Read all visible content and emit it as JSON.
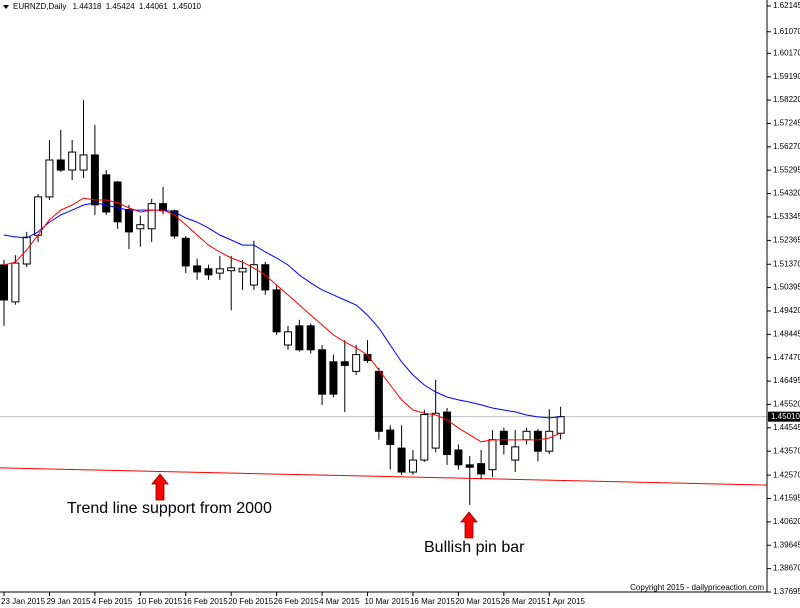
{
  "chart_data": {
    "type": "candlestick",
    "symbol": "EURNZD,Daily",
    "ohlc_label": [
      "1.44318",
      "1.45424",
      "1.44061",
      "1.45010"
    ],
    "categories": [
      "23 Jan 2015",
      null,
      null,
      null,
      "29 Jan 2015",
      null,
      null,
      null,
      "4 Feb 2015",
      null,
      null,
      null,
      "10 Feb 2015",
      null,
      null,
      null,
      "16 Feb 2015",
      null,
      null,
      null,
      "20 Feb 2015",
      null,
      null,
      null,
      "26 Feb 2015",
      null,
      null,
      null,
      "4 Mar 2015",
      null,
      null,
      null,
      "10 Mar 2015",
      null,
      null,
      null,
      "16 Mar 2015",
      null,
      null,
      null,
      "20 Mar 2015",
      null,
      null,
      null,
      "26 Mar 2015",
      null,
      null,
      null,
      "1 Apr 2015",
      null
    ],
    "open": [
      1.5134,
      1.498,
      1.5138,
      1.5258,
      1.5418,
      1.5572,
      1.553,
      1.553,
      1.5593,
      1.551,
      1.548,
      1.5365,
      1.5285,
      1.5285,
      1.539,
      1.536,
      1.5245,
      1.513,
      1.5118,
      1.51,
      1.511,
      1.5105,
      1.505,
      1.5135,
      1.503,
      1.48,
      1.488,
      1.488,
      1.478,
      1.473,
      1.473,
      1.469,
      1.476,
      1.469,
      1.4445,
      1.437,
      1.427,
      1.432,
      1.437,
      1.452,
      1.4362,
      1.43,
      1.4305,
      1.428,
      1.444,
      1.432,
      1.4405,
      1.444,
      1.4357,
      1.44318
    ],
    "high": [
      1.5155,
      1.5175,
      1.5272,
      1.543,
      1.5655,
      1.5697,
      1.5655,
      1.5822,
      1.5718,
      1.553,
      1.5485,
      1.5385,
      1.534,
      1.541,
      1.546,
      1.5365,
      1.5255,
      1.516,
      1.5135,
      1.5172,
      1.5172,
      1.5155,
      1.5235,
      1.5147,
      1.505,
      1.488,
      1.4905,
      1.489,
      1.48,
      1.476,
      1.482,
      1.48,
      1.482,
      1.4705,
      1.4465,
      1.4465,
      1.4362,
      1.453,
      1.4655,
      1.4537,
      1.4385,
      1.4337,
      1.4362,
      1.4445,
      1.4455,
      1.4445,
      1.4455,
      1.445,
      1.4532,
      1.45424
    ],
    "low": [
      1.488,
      1.4968,
      1.5125,
      1.523,
      1.5405,
      1.5522,
      1.5488,
      1.5497,
      1.5343,
      1.5343,
      1.5285,
      1.52,
      1.521,
      1.523,
      1.5345,
      1.5243,
      1.51,
      1.5072,
      1.5072,
      1.5072,
      1.4945,
      1.503,
      1.503,
      1.501,
      1.4842,
      1.478,
      1.4772,
      1.4765,
      1.455,
      1.4582,
      1.452,
      1.4675,
      1.4725,
      1.4405,
      1.428,
      1.4258,
      1.4258,
      1.4312,
      1.4352,
      1.43,
      1.428,
      1.4133,
      1.424,
      1.425,
      1.4343,
      1.427,
      1.4385,
      1.4315,
      1.4345,
      1.44061
    ],
    "close": [
      1.4988,
      1.5142,
      1.525,
      1.5418,
      1.5572,
      1.553,
      1.5605,
      1.5593,
      1.5385,
      1.5355,
      1.5314,
      1.5272,
      1.5302,
      1.539,
      1.536,
      1.5255,
      1.513,
      1.5105,
      1.5093,
      1.5118,
      1.5122,
      1.512,
      1.5135,
      1.503,
      1.4855,
      1.4855,
      1.478,
      1.478,
      1.4595,
      1.4595,
      1.4715,
      1.476,
      1.4735,
      1.444,
      1.4385,
      1.427,
      1.432,
      1.451,
      1.4515,
      1.4343,
      1.43,
      1.429,
      1.4262,
      1.4405,
      1.4385,
      1.4375,
      1.444,
      1.4357,
      1.444,
      1.4501
    ],
    "up_color": "#ffffff",
    "down_color": "#000000",
    "ma_lines": [
      {
        "color": "#0000ff",
        "values": [
          1.5259,
          1.5251,
          1.5247,
          1.5272,
          1.5313,
          1.5343,
          1.5363,
          1.5384,
          1.5393,
          1.5384,
          1.5372,
          1.5363,
          1.5363,
          1.5363,
          1.5363,
          1.5355,
          1.533,
          1.5313,
          1.5288,
          1.5259,
          1.5238,
          1.5217,
          1.5217,
          1.5188,
          1.5163,
          1.5134,
          1.5092,
          1.5059,
          1.503,
          1.5009,
          1.4988,
          1.4967,
          1.4925,
          1.4871,
          1.48,
          1.4729,
          1.4675,
          1.4633,
          1.4604,
          1.4583,
          1.4571,
          1.4562,
          1.455,
          1.4537,
          1.4529,
          1.4521,
          1.4508,
          1.45,
          1.4496,
          1.45
        ]
      },
      {
        "color": "#ff0000",
        "values": [
          1.5134,
          1.5146,
          1.5197,
          1.5259,
          1.5322,
          1.5363,
          1.5384,
          1.5413,
          1.5405,
          1.5405,
          1.5393,
          1.5372,
          1.5355,
          1.5363,
          1.5363,
          1.5343,
          1.5301,
          1.5259,
          1.5217,
          1.5188,
          1.5163,
          1.5146,
          1.5121,
          1.5092,
          1.505,
          1.5009,
          1.4967,
          1.4925,
          1.4884,
          1.4842,
          1.4813,
          1.4788,
          1.4758,
          1.4696,
          1.4633,
          1.4571,
          1.4529,
          1.4516,
          1.4508,
          1.4487,
          1.4454,
          1.4425,
          1.4396,
          1.4404,
          1.4404,
          1.4404,
          1.4404,
          1.4404,
          1.4412,
          1.4433
        ]
      }
    ],
    "trend_line": {
      "color": "#ff0000",
      "values": [
        1.4287,
        1.4235
      ]
    },
    "price_line": {
      "value": 1.4501,
      "label": "1.45010",
      "color": "#c0c0c0"
    },
    "annotations": [
      "Trend line support from 2000",
      "Bullish pin bar"
    ],
    "copyright": "Copyright 2015 - dailypriceaction.com",
    "ylim": [
      1.37695,
      1.62395
    ],
    "yticks": [
      1.62145,
      {
        "value": 1.6107,
        "label": "1.61070"
      },
      {
        "value": 1.6017,
        "label": "1.60170"
      },
      {
        "value": 1.5919,
        "label": "1.59190"
      },
      {
        "value": 1.5822,
        "label": "1.58220"
      },
      1.57245,
      {
        "value": 1.5627,
        "label": "1.56270"
      },
      1.55295,
      {
        "value": 1.5432,
        "label": "1.54320"
      },
      1.53345,
      1.52365,
      {
        "value": 1.5137,
        "label": "1.51370"
      },
      1.50395,
      {
        "value": 1.4942,
        "label": "1.49420"
      },
      1.48445,
      {
        "value": 1.4747,
        "label": "1.47470"
      },
      1.46495,
      {
        "value": 1.4552,
        "label": "1.45520"
      },
      1.44545,
      {
        "value": 1.4357,
        "label": "1.43570"
      },
      {
        "value": 1.4257,
        "label": "1.42570"
      },
      1.41595,
      {
        "value": 1.4062,
        "label": "1.40620"
      },
      1.39645,
      {
        "value": 1.3867,
        "label": "1.38670"
      },
      1.37695
    ]
  }
}
